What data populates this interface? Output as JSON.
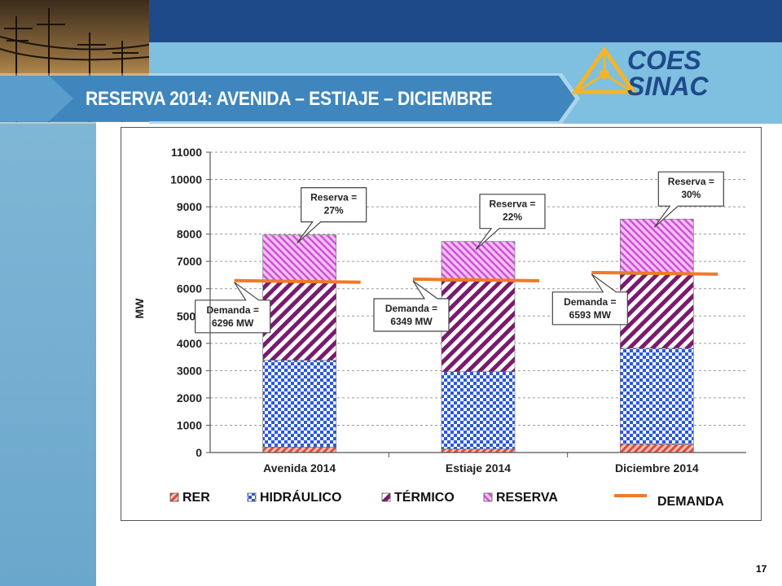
{
  "slide": {
    "title": "RESERVA 2014: AVENIDA – ESTIAJE – DICIEMBRE",
    "page_number": "17",
    "logo_top": "COES",
    "logo_bottom": "SINAC"
  },
  "colors": {
    "top_bar": "#1e4a8a",
    "band": "#7fbfe0",
    "title_banner": "#3e86bd",
    "rer": "#e04a3a",
    "hidraulico": "#2a58e0",
    "termico": "#7a1a6e",
    "reserva": "#d24fd8",
    "demanda": "#f07a28"
  },
  "chart_data": {
    "type": "bar",
    "stacked": true,
    "categories": [
      "Avenida 2014",
      "Estiaje 2014",
      "Diciembre 2014"
    ],
    "ylabel": "MW",
    "ylim": [
      0,
      11000
    ],
    "yticks": [
      0,
      1000,
      2000,
      3000,
      4000,
      5000,
      6000,
      7000,
      8000,
      9000,
      10000,
      11000
    ],
    "grid": true,
    "legend_position": "bottom",
    "series": [
      {
        "name": "RER",
        "key": "rer",
        "values": [
          200,
          130,
          300
        ]
      },
      {
        "name": "HIDRÁULICO",
        "key": "hidraulico",
        "values": [
          3180,
          2830,
          3520
        ]
      },
      {
        "name": "TÉRMICO",
        "key": "termico",
        "values": [
          2900,
          3310,
          2700
        ]
      },
      {
        "name": "RESERVA",
        "key": "reserva",
        "values": [
          1690,
          1460,
          2030
        ]
      }
    ],
    "demand": {
      "name": "DEMANDA",
      "values": [
        6296,
        6349,
        6593
      ]
    },
    "annotations": {
      "reserva": [
        {
          "line1": "Reserva =",
          "line2": "27%"
        },
        {
          "line1": "Reserva =",
          "line2": "22%"
        },
        {
          "line1": "Reserva =",
          "line2": "30%"
        }
      ],
      "demanda": [
        {
          "line1": "Demanda =",
          "line2": "6296 MW"
        },
        {
          "line1": "Demanda =",
          "line2": "6349 MW"
        },
        {
          "line1": "Demanda =",
          "line2": "6593 MW"
        }
      ]
    }
  }
}
